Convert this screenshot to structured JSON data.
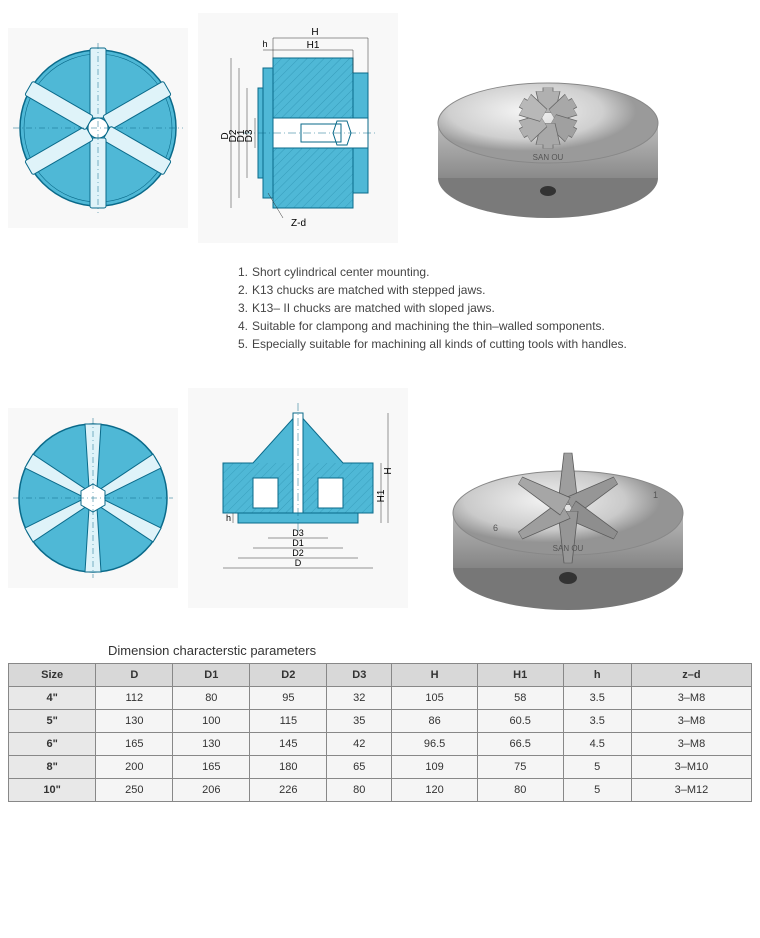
{
  "features": [
    "Short cylindrical center mounting.",
    "K13 chucks are matched with stepped jaws.",
    "K13– II  chucks are matched with sloped jaws.",
    "Suitable for clampong and machining the thin–walled somponents.",
    "Especially suitable for machining all kinds of cutting tools with handles."
  ],
  "table_title": "Dimension characterstic parameters",
  "table": {
    "columns": [
      "Size",
      "D",
      "D1",
      "D2",
      "D3",
      "H",
      "H1",
      "h",
      "z–d"
    ],
    "rows": [
      [
        "4\"",
        "112",
        "80",
        "95",
        "32",
        "105",
        "58",
        "3.5",
        "3–M8"
      ],
      [
        "5\"",
        "130",
        "100",
        "115",
        "35",
        "86",
        "60.5",
        "3.5",
        "3–M8"
      ],
      [
        "6\"",
        "165",
        "130",
        "145",
        "42",
        "96.5",
        "66.5",
        "4.5",
        "3–M8"
      ],
      [
        "8\"",
        "200",
        "165",
        "180",
        "65",
        "109",
        "75",
        "5",
        "3–M10"
      ],
      [
        "10\"",
        "250",
        "206",
        "226",
        "80",
        "120",
        "80",
        "5",
        "3–M12"
      ]
    ]
  },
  "diagram_labels": {
    "H": "H",
    "H1": "H1",
    "h": "h",
    "D": "D",
    "D1": "D1",
    "D2": "D2",
    "D3": "D3",
    "Zd": "Z-d"
  },
  "colors": {
    "chuck_fill": "#4fb8d6",
    "chuck_stroke": "#0a6a8a",
    "section_fill": "#4fb8d6",
    "metal_light": "#e8e8e8",
    "metal_mid": "#cfcfcf",
    "metal_dark": "#888888"
  },
  "photo_brand": "SAN OU"
}
